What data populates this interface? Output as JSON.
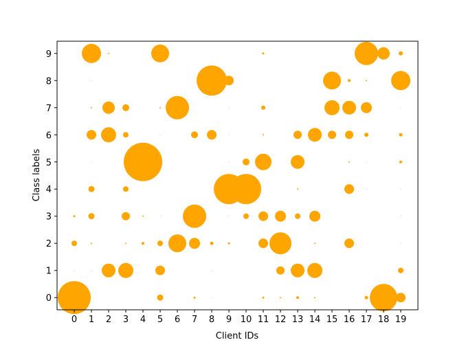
{
  "chart_data": {
    "type": "scatter",
    "x_label": "Client IDs",
    "y_label": "Class labels",
    "xlim": [
      -1,
      20
    ],
    "ylim": [
      -0.45,
      9.45
    ],
    "xticks": [
      0,
      1,
      2,
      3,
      4,
      5,
      6,
      7,
      8,
      9,
      10,
      11,
      12,
      13,
      14,
      15,
      16,
      17,
      18,
      19
    ],
    "yticks": [
      0,
      1,
      2,
      3,
      4,
      5,
      6,
      7,
      8,
      9
    ],
    "series": [
      {
        "color": "#ffa500",
        "x": [
          1,
          2,
          5,
          11,
          17,
          18,
          19,
          1,
          8,
          9,
          15,
          16,
          17,
          19,
          1,
          2,
          3,
          5,
          6,
          9,
          11,
          15,
          16,
          17,
          19,
          1,
          2,
          3,
          5,
          7,
          8,
          9,
          11,
          13,
          14,
          15,
          16,
          17,
          19,
          1,
          4,
          9,
          10,
          11,
          13,
          16,
          17,
          19,
          1,
          3,
          9,
          10,
          13,
          16,
          17,
          19,
          0,
          1,
          3,
          4,
          5,
          7,
          9,
          10,
          11,
          12,
          13,
          14,
          19,
          0,
          1,
          3,
          4,
          5,
          6,
          7,
          8,
          9,
          11,
          12,
          14,
          16,
          19,
          0,
          1,
          2,
          3,
          5,
          8,
          12,
          13,
          14,
          19,
          0,
          5,
          7,
          8,
          11,
          12,
          13,
          14,
          17,
          18,
          19
        ],
        "values": [
          9,
          9,
          9,
          9,
          9,
          9,
          9,
          8,
          8,
          8,
          8,
          8,
          8,
          8,
          7,
          7,
          7,
          7,
          7,
          7,
          7,
          7,
          7,
          7,
          7,
          6,
          6,
          6,
          6,
          6,
          6,
          6,
          6,
          6,
          6,
          6,
          6,
          6,
          6,
          5,
          5,
          5,
          5,
          5,
          5,
          5,
          5,
          5,
          4,
          4,
          4,
          4,
          4,
          4,
          4,
          4,
          3,
          3,
          3,
          3,
          3,
          3,
          3,
          3,
          3,
          3,
          3,
          3,
          3,
          2,
          2,
          2,
          2,
          2,
          2,
          2,
          2,
          2,
          2,
          2,
          2,
          2,
          2,
          1,
          1,
          1,
          1,
          1,
          1,
          1,
          1,
          1,
          1,
          0,
          0,
          0,
          0,
          0,
          0,
          0,
          0,
          0,
          0,
          0
        ],
        "sizes": [
          14,
          1,
          13,
          1.5,
          17,
          9,
          3,
          0.5,
          22,
          7,
          13,
          2,
          1,
          14,
          1,
          9,
          5,
          1,
          17,
          0.5,
          3,
          11,
          10,
          8,
          0.5,
          7,
          11,
          4,
          0.5,
          5,
          7,
          0.5,
          1,
          6,
          10,
          6,
          6,
          3,
          2.5,
          0.5,
          28,
          0.5,
          5,
          12,
          10,
          1,
          0.5,
          2,
          4.5,
          4,
          22,
          22,
          1,
          7,
          0.5,
          0.5,
          1.5,
          4.5,
          6,
          1,
          0.5,
          17,
          0.5,
          4,
          7,
          8,
          4,
          8,
          0.5,
          4,
          1,
          1,
          2,
          4,
          13,
          8,
          2.5,
          1.5,
          7,
          16,
          1,
          7,
          0.5,
          0.5,
          0.5,
          10,
          11,
          7,
          0.5,
          6,
          10,
          11,
          4,
          24,
          4.5,
          1.5,
          0.5,
          1.5,
          1,
          2,
          1,
          2.5,
          20,
          7
        ]
      }
    ]
  }
}
